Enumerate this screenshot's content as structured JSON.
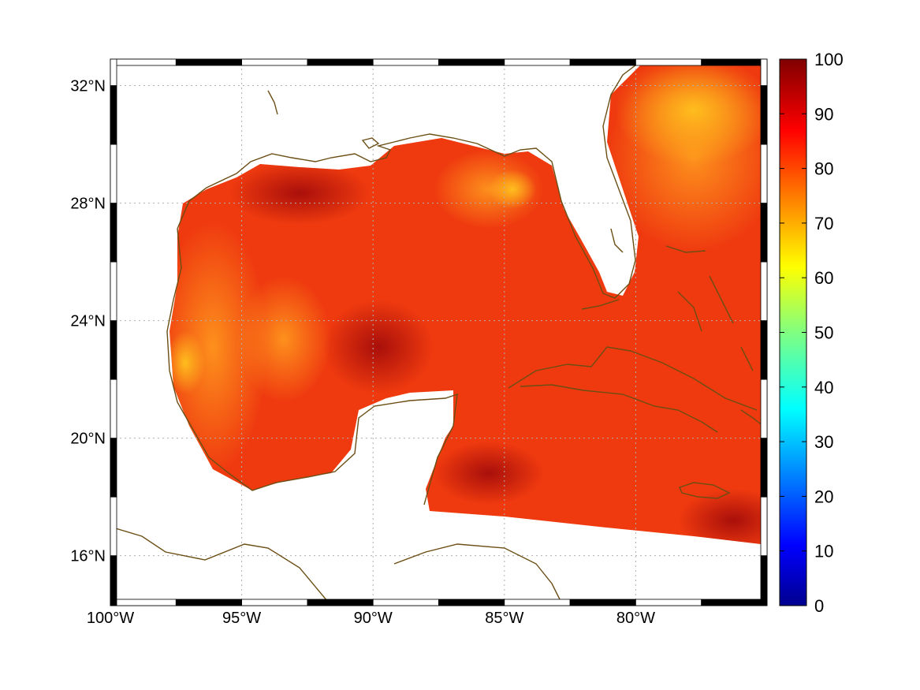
{
  "map": {
    "lon_range": [
      -100,
      -75
    ],
    "lat_range": [
      14.3,
      32.9
    ],
    "x_ticks": [
      {
        "lon": -100,
        "label": "100°W"
      },
      {
        "lon": -95,
        "label": "95°W"
      },
      {
        "lon": -90,
        "label": "90°W"
      },
      {
        "lon": -85,
        "label": "85°W"
      },
      {
        "lon": -80,
        "label": "80°W"
      }
    ],
    "y_ticks": [
      {
        "lat": 32,
        "label": "32°N"
      },
      {
        "lat": 28,
        "label": "28°N"
      },
      {
        "lat": 24,
        "label": "24°N"
      },
      {
        "lat": 20,
        "label": "20°N"
      },
      {
        "lat": 16,
        "label": "16°N"
      }
    ],
    "grid": true,
    "coastline_color": "#6b4e14",
    "ocean_base_color": "#f03b10"
  },
  "colorbar": {
    "min": 0,
    "max": 100,
    "ticks": [
      {
        "value": 100,
        "label": "100"
      },
      {
        "value": 90,
        "label": "90"
      },
      {
        "value": 80,
        "label": "80"
      },
      {
        "value": 70,
        "label": "70"
      },
      {
        "value": 60,
        "label": "60"
      },
      {
        "value": 50,
        "label": "50"
      },
      {
        "value": 40,
        "label": "40"
      },
      {
        "value": 30,
        "label": "30"
      },
      {
        "value": 20,
        "label": "20"
      },
      {
        "value": 10,
        "label": "10"
      },
      {
        "value": 0,
        "label": "0"
      }
    ],
    "colormap": "jet"
  }
}
